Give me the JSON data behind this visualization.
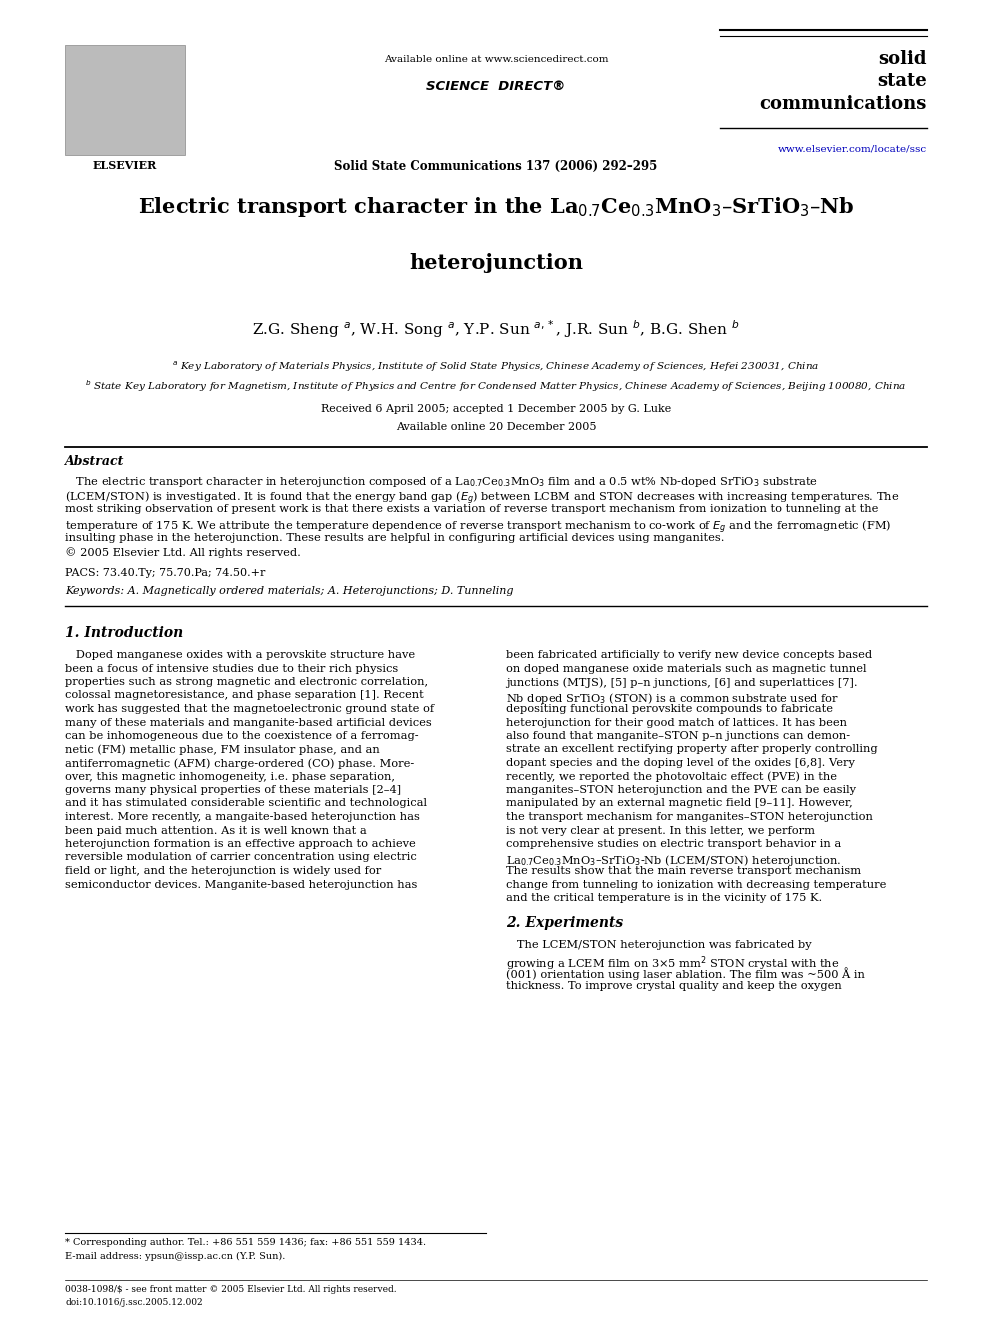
{
  "bg_color": "#ffffff",
  "page_width": 9.92,
  "page_height": 13.23,
  "header": {
    "available_online": "Available online at www.sciencedirect.com",
    "sciencedirect": "SCIENCE  DIRECT®",
    "journal_line1": "solid",
    "journal_line2": "state",
    "journal_line3": "communications",
    "journal_ref": "Solid State Communications 137 (2006) 292–295",
    "url": "www.elsevier.com/locate/ssc"
  },
  "title_line1": "Electric transport character in the La$_{0.7}$Ce$_{0.3}$MnO$_3$–SrTiO$_3$–Nb",
  "title_line2": "heterojunction",
  "authors": "Z.G. Sheng $^{a}$, W.H. Song $^{a}$, Y.P. Sun $^{a,*}$, J.R. Sun $^{b}$, B.G. Shen $^{b}$",
  "affil_a": "$^{a}$ Key Laboratory of Materials Physics, Institute of Solid State Physics, Chinese Academy of Sciences, Hefei 230031, China",
  "affil_b": "$^{b}$ State Key Laboratory for Magnetism, Institute of Physics and Centre for Condensed Matter Physics, Chinese Academy of Sciences, Beijing 100080, China",
  "received": "Received 6 April 2005; accepted 1 December 2005 by G. Luke",
  "available": "Available online 20 December 2005",
  "abstract_title": "Abstract",
  "abstract_lines": [
    "   The electric transport character in heterojunction composed of a La$_{0.7}$Ce$_{0.3}$MnO$_3$ film and a 0.5 wt% Nb-doped SrTiO$_3$ substrate",
    "(LCEM/STON) is investigated. It is found that the energy band gap ($E_g$) between LCBM and STON decreases with increasing temperatures. The",
    "most striking observation of present work is that there exists a variation of reverse transport mechanism from ionization to tunneling at the",
    "temperature of 175 K. We attribute the temperature dependence of reverse transport mechanism to co-work of $E_g$ and the ferromagnetic (FM)",
    "insulting phase in the heterojunction. These results are helpful in configuring artificial devices using manganites.",
    "© 2005 Elsevier Ltd. All rights reserved."
  ],
  "pacs": "PACS: 73.40.Ty; 75.70.Pa; 74.50.+r",
  "keywords": "Keywords: A. Magnetically ordered materials; A. Heterojunctions; D. Tunneling",
  "sec1_title": "1. Introduction",
  "col1_lines": [
    "   Doped manganese oxides with a perovskite structure have",
    "been a focus of intensive studies due to their rich physics",
    "properties such as strong magnetic and electronic correlation,",
    "colossal magnetoresistance, and phase separation [1]. Recent",
    "work has suggested that the magnetoelectronic ground state of",
    "many of these materials and manganite-based artificial devices",
    "can be inhomogeneous due to the coexistence of a ferromag-",
    "netic (FM) metallic phase, FM insulator phase, and an",
    "antiferromagnetic (AFM) charge-ordered (CO) phase. More-",
    "over, this magnetic inhomogeneity, i.e. phase separation,",
    "governs many physical properties of these materials [2–4]",
    "and it has stimulated considerable scientific and technological",
    "interest. More recently, a mangaite-based heterojunction has",
    "been paid much attention. As it is well known that a",
    "heterojunction formation is an effective approach to achieve",
    "reversible modulation of carrier concentration using electric",
    "field or light, and the heterojunction is widely used for",
    "semiconductor devices. Manganite-based heterojunction has"
  ],
  "col2_lines": [
    "been fabricated artificially to verify new device concepts based",
    "on doped manganese oxide materials such as magnetic tunnel",
    "junctions (MTJS), [5] p–n junctions, [6] and superlattices [7].",
    "Nb doped SrTiO$_3$ (STON) is a common substrate used for",
    "depositing functional perovskite compounds to fabricate",
    "heterojunction for their good match of lattices. It has been",
    "also found that manganite–STON p–n junctions can demon-",
    "strate an excellent rectifying property after properly controlling",
    "dopant species and the doping level of the oxides [6,8]. Very",
    "recently, we reported the photovoltaic effect (PVE) in the",
    "manganites–STON heterojunction and the PVE can be easily",
    "manipulated by an external magnetic field [9–11]. However,",
    "the transport mechanism for manganites–STON heterojunction",
    "is not very clear at present. In this letter, we perform",
    "comprehensive studies on electric transport behavior in a",
    "La$_{0.7}$Ce$_{0.3}$MnO$_3$–SrTiO$_3$-Nb (LCEM/STON) heterojunction.",
    "The results show that the main reverse transport mechanism",
    "change from tunneling to ionization with decreasing temperature",
    "and the critical temperature is in the vicinity of 175 K."
  ],
  "sec2_title": "2. Experiments",
  "sec2_lines": [
    "   The LCEM/STON heterojunction was fabricated by",
    "growing a LCEM film on 3×5 mm$^2$ STON crystal with the",
    "(001) orientation using laser ablation. The film was ~500 Å in",
    "thickness. To improve crystal quality and keep the oxygen"
  ],
  "footnote_star": "* Corresponding author. Tel.: +86 551 559 1436; fax: +86 551 559 1434.",
  "footnote_email": "E-mail address: ypsun@issp.ac.cn (Y.P. Sun).",
  "footer1": "0038-1098/$ - see front matter © 2005 Elsevier Ltd. All rights reserved.",
  "footer2": "doi:10.1016/j.ssc.2005.12.002"
}
